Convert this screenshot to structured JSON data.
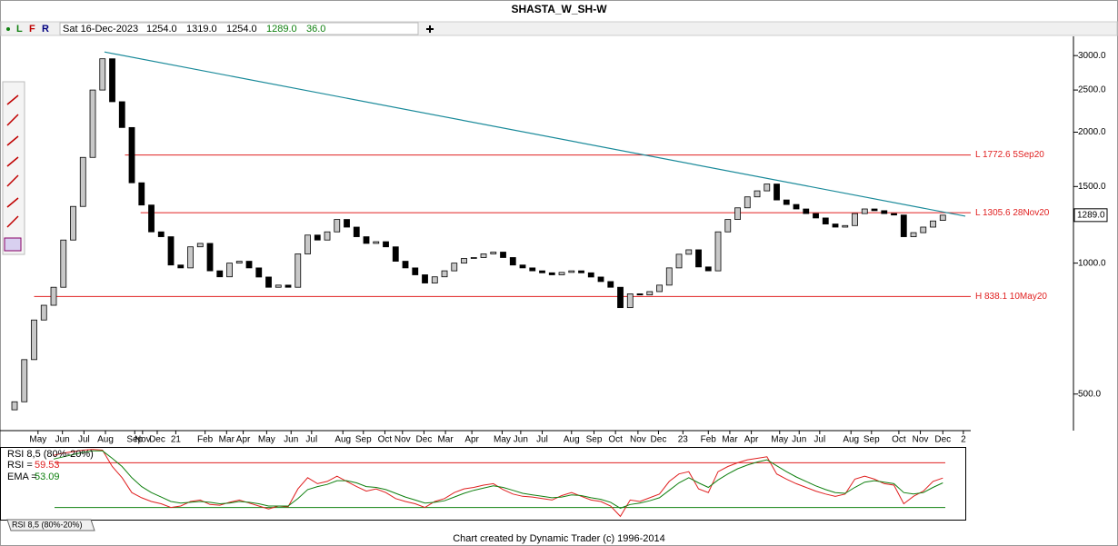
{
  "header": {
    "title": "SHASTA_W_SH-W",
    "toolbar": [
      "L",
      "F",
      "R"
    ],
    "date": "Sat 16-Dec-2023",
    "open": "1254.0",
    "high": "1319.0",
    "low": "1254.0",
    "close": "1289.0",
    "change": "36.0"
  },
  "tab": "RSI 8,5 (80%-20%)",
  "footer": "Chart created by Dynamic Trader  (c) 1996-2014",
  "chart_data": [
    {
      "type": "candlestick",
      "log_scale": true,
      "up_color": "#c8c8c8",
      "down_color": "#000000",
      "xlim": [
        -1.49,
        97.3
      ],
      "ylim": [
        412,
        3290
      ],
      "yticks": [
        {
          "value": 500,
          "label": "500.0"
        },
        {
          "value": 1000,
          "label": "1000.0"
        },
        {
          "value": 1500,
          "label": "1500.0"
        },
        {
          "value": 2000,
          "label": "2000.0"
        },
        {
          "value": 2500,
          "label": "2500.0"
        },
        {
          "value": 3000,
          "label": "3000.0"
        }
      ],
      "xticks": [
        {
          "value": 2.4,
          "label": "May"
        },
        {
          "value": 4.9,
          "label": "Jun"
        },
        {
          "value": 7.1,
          "label": "Jul"
        },
        {
          "value": 9.3,
          "label": "Aug"
        },
        {
          "value": 12.3,
          "label": "Sep"
        },
        {
          "value": 13.1,
          "label": "Nov"
        },
        {
          "value": 14.6,
          "label": "Dec"
        },
        {
          "value": 16.5,
          "label": "21"
        },
        {
          "value": 19.5,
          "label": "Feb"
        },
        {
          "value": 21.7,
          "label": "Mar"
        },
        {
          "value": 23.4,
          "label": "Apr"
        },
        {
          "value": 25.8,
          "label": "May"
        },
        {
          "value": 28.3,
          "label": "Jun"
        },
        {
          "value": 30.4,
          "label": "Jul"
        },
        {
          "value": 33.6,
          "label": "Aug"
        },
        {
          "value": 35.7,
          "label": "Sep"
        },
        {
          "value": 37.9,
          "label": "Oct"
        },
        {
          "value": 39.7,
          "label": "Nov"
        },
        {
          "value": 41.9,
          "label": "Dec"
        },
        {
          "value": 44.1,
          "label": "Mar"
        },
        {
          "value": 46.8,
          "label": "Apr"
        },
        {
          "value": 49.9,
          "label": "May"
        },
        {
          "value": 51.8,
          "label": "Jun"
        },
        {
          "value": 54.0,
          "label": "Jul"
        },
        {
          "value": 57.0,
          "label": "Aug"
        },
        {
          "value": 59.3,
          "label": "Sep"
        },
        {
          "value": 61.5,
          "label": "Oct"
        },
        {
          "value": 63.8,
          "label": "Nov"
        },
        {
          "value": 65.9,
          "label": "Dec"
        },
        {
          "value": 68.4,
          "label": "23"
        },
        {
          "value": 71.0,
          "label": "Feb"
        },
        {
          "value": 73.2,
          "label": "Mar"
        },
        {
          "value": 75.4,
          "label": "Apr"
        },
        {
          "value": 78.3,
          "label": "May"
        },
        {
          "value": 80.3,
          "label": "Jun"
        },
        {
          "value": 82.4,
          "label": "Jul"
        },
        {
          "value": 85.6,
          "label": "Aug"
        },
        {
          "value": 87.7,
          "label": "Sep"
        },
        {
          "value": 90.5,
          "label": "Oct"
        },
        {
          "value": 92.7,
          "label": "Nov"
        },
        {
          "value": 95.0,
          "label": "Dec"
        },
        {
          "value": 97.1,
          "label": "2"
        }
      ],
      "open": [
        460,
        480,
        600,
        740,
        800,
        880,
        1130,
        1350,
        1750,
        2500,
        2950,
        2350,
        2050,
        1530,
        1360,
        1180,
        1150,
        990,
        975,
        1090,
        1110,
        960,
        930,
        1000,
        1010,
        975,
        929,
        880,
        890,
        880,
        1050,
        1160,
        1130,
        1180,
        1260,
        1210,
        1150,
        1110,
        1120,
        1090,
        1010,
        975,
        940,
        900,
        930,
        960,
        1000,
        1025,
        1030,
        1050,
        1060,
        1030,
        990,
        975,
        960,
        950,
        940,
        952,
        960,
        950,
        929,
        907,
        880,
        790,
        850,
        845,
        860,
        890,
        975,
        1048,
        1073,
        980,
        960,
        1180,
        1260,
        1340,
        1420,
        1466,
        1520,
        1397,
        1364,
        1332,
        1300,
        1270,
        1230,
        1210,
        1220,
        1300,
        1332,
        1320,
        1300,
        1290,
        1150,
        1175,
        1210,
        1254
      ],
      "close": [
        480,
        600,
        740,
        800,
        880,
        1130,
        1350,
        1750,
        2500,
        2950,
        2350,
        2050,
        1530,
        1360,
        1180,
        1150,
        990,
        975,
        1090,
        1110,
        960,
        930,
        1000,
        1010,
        975,
        929,
        880,
        890,
        880,
        1050,
        1160,
        1130,
        1180,
        1260,
        1210,
        1150,
        1110,
        1120,
        1090,
        1010,
        975,
        940,
        900,
        930,
        960,
        1000,
        1025,
        1030,
        1050,
        1060,
        1030,
        990,
        975,
        960,
        950,
        940,
        952,
        960,
        950,
        929,
        907,
        880,
        790,
        850,
        845,
        860,
        890,
        975,
        1048,
        1073,
        980,
        960,
        1180,
        1260,
        1340,
        1420,
        1466,
        1520,
        1397,
        1364,
        1332,
        1300,
        1270,
        1230,
        1210,
        1220,
        1300,
        1332,
        1320,
        1300,
        1290,
        1150,
        1175,
        1210,
        1250,
        1289
      ],
      "trendline": {
        "color": "#1a8a9a",
        "x": [
          9.2,
          97.3
        ],
        "y": [
          3058,
          1282
        ]
      },
      "levels": [
        {
          "value": 1772.6,
          "label": "L 1772.6 5Sep20",
          "x0": 11.3,
          "color": "#e02020"
        },
        {
          "value": 1305.6,
          "label": "L 1305.6 28Nov20",
          "x0": 12.9,
          "color": "#e02020"
        },
        {
          "value": 838.1,
          "label": "H 838.1 10May20",
          "x0": 2.0,
          "color": "#e02020"
        }
      ],
      "last_price": {
        "value": 1289,
        "label": "1289.0"
      }
    },
    {
      "type": "line",
      "title": "RSI 8,5 (80%-20%)",
      "xlim": [
        -1.49,
        97.3
      ],
      "ylim": [
        0,
        100
      ],
      "levels": [
        {
          "value": 80,
          "color": "#e02020"
        },
        {
          "value": 20,
          "color": "#108010"
        }
      ],
      "series": [
        {
          "name": "RSI =",
          "color": "#e02020",
          "values": [
            null,
            null,
            null,
            null,
            90,
            93,
            95,
            97,
            98,
            97,
            75,
            60,
            40,
            33,
            28,
            25,
            20,
            22,
            28,
            30,
            24,
            23,
            27,
            30,
            26,
            22,
            18,
            22,
            21,
            45,
            60,
            52,
            55,
            62,
            55,
            48,
            42,
            45,
            40,
            32,
            28,
            25,
            20,
            28,
            32,
            40,
            45,
            47,
            50,
            52,
            44,
            38,
            35,
            34,
            32,
            30,
            36,
            40,
            35,
            30,
            28,
            22,
            8,
            30,
            28,
            33,
            38,
            55,
            65,
            68,
            45,
            40,
            68,
            75,
            80,
            84,
            86,
            88,
            65,
            58,
            52,
            47,
            42,
            38,
            35,
            38,
            58,
            62,
            58,
            52,
            50,
            25,
            35,
            42,
            55,
            59.53
          ]
        },
        {
          "name": "EMA =",
          "color": "#108010",
          "values": [
            null,
            null,
            null,
            null,
            85,
            88,
            91,
            94,
            96,
            96,
            86,
            75,
            60,
            48,
            40,
            34,
            28,
            26,
            27,
            28,
            27,
            25,
            26,
            28,
            27,
            25,
            22,
            22,
            22,
            32,
            44,
            48,
            51,
            56,
            56,
            53,
            48,
            47,
            44,
            39,
            34,
            30,
            26,
            27,
            29,
            34,
            39,
            43,
            46,
            49,
            47,
            43,
            39,
            37,
            35,
            33,
            34,
            37,
            36,
            33,
            31,
            27,
            19,
            24,
            26,
            29,
            33,
            43,
            53,
            60,
            53,
            47,
            57,
            65,
            72,
            77,
            81,
            84,
            76,
            68,
            61,
            55,
            49,
            44,
            40,
            39,
            47,
            54,
            56,
            54,
            52,
            40,
            38,
            40,
            47,
            53.09
          ]
        }
      ]
    }
  ]
}
